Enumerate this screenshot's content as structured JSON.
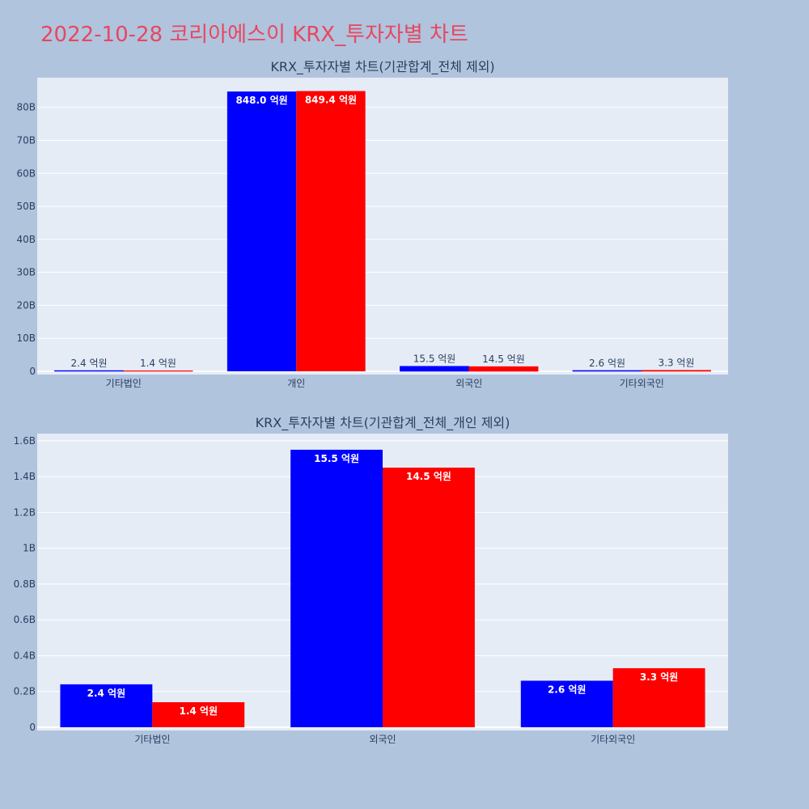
{
  "page_title": "2022-10-28 코리아에스이 KRX_투자자별 차트",
  "colors": {
    "buy": "#0000ff",
    "sell": "#ff0000",
    "plot_bg": "#e5ecf6",
    "page_bg": "#b0c4de",
    "title": "#e8475f"
  },
  "chart_data": [
    {
      "type": "bar",
      "title": "KRX_투자자별 차트(기관합계_전체 제외)",
      "categories": [
        "기타법인",
        "개인",
        "외국인",
        "기타외국인"
      ],
      "ylim": [
        0,
        89
      ],
      "yticks": [
        0,
        10,
        20,
        30,
        40,
        50,
        60,
        70,
        80
      ],
      "ytick_labels": [
        "0",
        "10B",
        "20B",
        "30B",
        "40B",
        "50B",
        "60B",
        "70B",
        "80B"
      ],
      "grid": true,
      "series": [
        {
          "color": "#0000ff",
          "values": [
            0.24,
            84.8,
            1.55,
            0.26
          ],
          "labels": [
            "2.4 억원",
            "848.0 억원",
            "15.5 억원",
            "2.6 억원"
          ]
        },
        {
          "color": "#ff0000",
          "values": [
            0.14,
            84.94,
            1.45,
            0.33
          ],
          "labels": [
            "1.4 억원",
            "849.4 억원",
            "14.5 억원",
            "3.3 억원"
          ]
        }
      ]
    },
    {
      "type": "bar",
      "title": "KRX_투자자별 차트(기관합계_전체_개인 제외)",
      "categories": [
        "기타법인",
        "외국인",
        "기타외국인"
      ],
      "ylim": [
        0,
        1.64
      ],
      "yticks": [
        0,
        0.2,
        0.4,
        0.6,
        0.8,
        1.0,
        1.2,
        1.4,
        1.6
      ],
      "ytick_labels": [
        "0",
        "0.2B",
        "0.4B",
        "0.6B",
        "0.8B",
        "1B",
        "1.2B",
        "1.4B",
        "1.6B"
      ],
      "grid": true,
      "series": [
        {
          "color": "#0000ff",
          "values": [
            0.24,
            1.55,
            0.26
          ],
          "labels": [
            "2.4 억원",
            "15.5 억원",
            "2.6 억원"
          ]
        },
        {
          "color": "#ff0000",
          "values": [
            0.14,
            1.45,
            0.33
          ],
          "labels": [
            "1.4 억원",
            "14.5 억원",
            "3.3 억원"
          ]
        }
      ]
    }
  ]
}
